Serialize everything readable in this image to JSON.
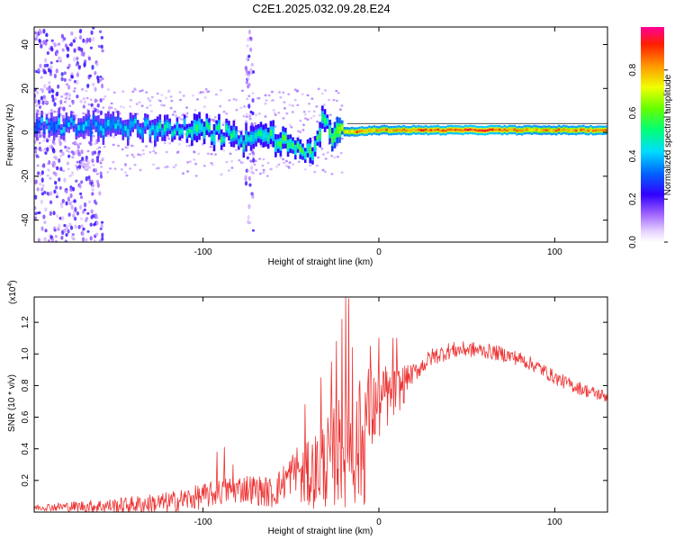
{
  "title": "C2E1.2025.032.09.28.E24",
  "spectrogram": {
    "type": "heatmap",
    "xlabel": "Height of straight line (km)",
    "ylabel": "Frequency (Hz)",
    "xlim": [
      -196,
      130
    ],
    "ylim": [
      -50,
      48
    ],
    "xticks": [
      -100,
      0,
      100
    ],
    "yticks": [
      -40,
      -20,
      0,
      20,
      40
    ],
    "colorbar": {
      "label": "Normalized spectral amplitude",
      "range": [
        0,
        1
      ],
      "ticks": [
        0.0,
        0.2,
        0.4,
        0.6,
        0.8
      ],
      "tick_labels": [
        "0.0",
        "0.2",
        "0.4",
        "0.6",
        "0.8"
      ]
    },
    "band_center_hz": [
      [
        -196,
        3
      ],
      [
        -160,
        3
      ],
      [
        -120,
        2
      ],
      [
        -100,
        1
      ],
      [
        -85,
        -1
      ],
      [
        -75,
        -5
      ],
      [
        -65,
        0
      ],
      [
        -55,
        -5
      ],
      [
        -45,
        -7
      ],
      [
        -38,
        -10
      ],
      [
        -32,
        5
      ],
      [
        -25,
        -2
      ],
      [
        -20,
        0
      ],
      [
        0,
        1
      ],
      [
        40,
        1
      ],
      [
        130,
        1
      ]
    ],
    "band_amplitude": [
      [
        -196,
        0.35
      ],
      [
        -150,
        0.4
      ],
      [
        -120,
        0.45
      ],
      [
        -100,
        0.5
      ],
      [
        -75,
        0.45
      ],
      [
        -50,
        0.55
      ],
      [
        -30,
        0.5
      ],
      [
        -20,
        0.75
      ],
      [
        -10,
        0.85
      ],
      [
        0,
        0.8
      ],
      [
        20,
        0.85
      ],
      [
        60,
        0.9
      ],
      [
        90,
        0.8
      ],
      [
        130,
        0.85
      ]
    ],
    "noise_bands_km": [
      [
        -196,
        -158
      ],
      [
        -76,
        -72
      ]
    ]
  },
  "snr": {
    "type": "line",
    "xlabel": "Height of straight line (km)",
    "ylabel": "SNR (10 * v/v)",
    "scale_label": "(x10",
    "scale_exp": "4",
    "scale_close": ")",
    "xlim": [
      -196,
      130
    ],
    "ylim": [
      0,
      1.36
    ],
    "xticks": [
      -100,
      0,
      100
    ],
    "yticks": [
      0.2,
      0.4,
      0.6,
      0.8,
      1.0,
      1.2
    ],
    "ytick_labels": [
      "0.2",
      "0.4",
      "0.6",
      "0.8",
      "1.0",
      "1.2"
    ],
    "color": "#ee3333",
    "envelope_x": [
      -196,
      -150,
      -120,
      -100,
      -85,
      -75,
      -60,
      -45,
      -35,
      -25,
      -20,
      -15,
      -10,
      -5,
      0,
      10,
      20,
      30,
      40,
      50,
      60,
      70,
      80,
      90,
      100,
      110,
      120,
      130
    ],
    "envelope_y": [
      0.03,
      0.04,
      0.06,
      0.1,
      0.14,
      0.15,
      0.12,
      0.3,
      0.42,
      0.55,
      0.62,
      0.6,
      0.65,
      0.7,
      0.72,
      0.8,
      0.88,
      0.98,
      1.02,
      1.03,
      1.02,
      1.0,
      0.97,
      0.92,
      0.85,
      0.8,
      0.76,
      0.73
    ],
    "noise_amp_x": [
      -196,
      -100,
      -60,
      -45,
      -35,
      -25,
      -15,
      -10,
      0,
      20,
      50,
      130
    ],
    "noise_amp_y": [
      0.02,
      0.08,
      0.1,
      0.15,
      0.3,
      0.45,
      0.4,
      0.25,
      0.15,
      0.06,
      0.05,
      0.04
    ],
    "spikes": [
      [
        -92,
        0.38
      ],
      [
        -88,
        0.41
      ],
      [
        -83,
        0.3
      ],
      [
        -42,
        0.68
      ],
      [
        -33,
        0.85
      ],
      [
        -27,
        0.95
      ],
      [
        -24,
        1.08
      ],
      [
        -21,
        1.22
      ],
      [
        -19,
        1.36
      ],
      [
        -17,
        1.35
      ],
      [
        -15,
        1.04
      ],
      [
        -11,
        0.83
      ],
      [
        -5,
        1.05
      ],
      [
        0,
        1.1
      ],
      [
        4,
        0.92
      ],
      [
        8,
        1.1
      ],
      [
        10,
        1.1
      ]
    ]
  }
}
